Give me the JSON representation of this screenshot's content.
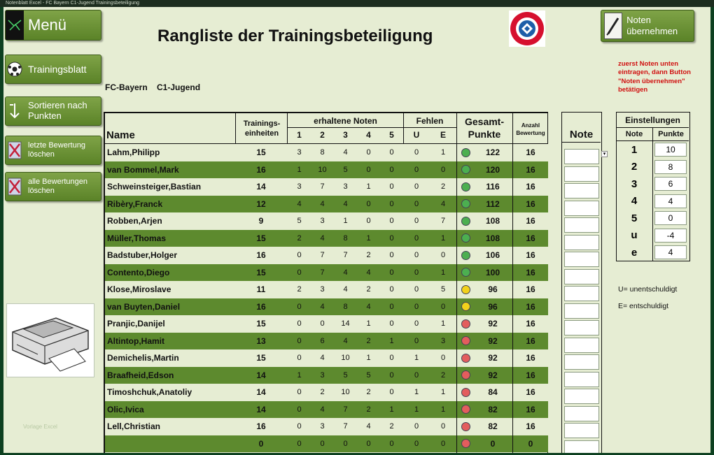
{
  "window": {
    "caption": "Notenblatt Excel - FC Bayern C1-Jugend Trainingsbeteiligung"
  },
  "sidebar": {
    "menu_label": "Menü",
    "buttons": [
      {
        "label": "Trainingsblatt",
        "icon": "soccer-ball-icon"
      },
      {
        "label": "Sortieren nach Punkten",
        "icon": "sort-icon"
      },
      {
        "label": "letzte Bewertung löschen",
        "icon": "delete-x-icon"
      },
      {
        "label": "alle Bewertungen löschen",
        "icon": "delete-x-icon"
      }
    ],
    "printer_icon": "printer-icon",
    "watermark": "Vorlage Excel"
  },
  "header": {
    "title": "Rangliste der Trainingsbeteiligung",
    "club_team": "FC-Bayern    C1-Jugend",
    "logo_text": "FC BAYERN MÜNCHEN",
    "noten_button": "Noten übernehmen",
    "hint": "zuerst Noten unten eintragen, dann Button \"Noten übernehmen\" betätigen"
  },
  "table": {
    "headers": {
      "name": "Name",
      "trainings": "Trainings-einheiten",
      "grades_group": "erhaltene Noten",
      "grades": [
        "1",
        "2",
        "3",
        "4",
        "5"
      ],
      "absent_group": "Fehlen",
      "absent": [
        "U",
        "E"
      ],
      "total": "Gesamt-Punkte",
      "count": "Anzahl Bewertung"
    },
    "status_colors": {
      "green": "#4caf50",
      "yellow": "#f2d21b",
      "red": "#e35d5d"
    },
    "rows": [
      {
        "name": "Lahm,Philipp",
        "te": "15",
        "n1": "3",
        "n2": "8",
        "n3": "4",
        "n4": "0",
        "n5": "0",
        "u": "0",
        "e": "1",
        "status": "green",
        "points": "122",
        "count": "16"
      },
      {
        "name": "van Bommel,Mark",
        "te": "16",
        "n1": "1",
        "n2": "10",
        "n3": "5",
        "n4": "0",
        "n5": "0",
        "u": "0",
        "e": "0",
        "status": "green",
        "points": "120",
        "count": "16"
      },
      {
        "name": "Schweinsteiger,Bastian",
        "te": "14",
        "n1": "3",
        "n2": "7",
        "n3": "3",
        "n4": "1",
        "n5": "0",
        "u": "0",
        "e": "2",
        "status": "green",
        "points": "116",
        "count": "16"
      },
      {
        "name": "Ribèry,Franck",
        "te": "12",
        "n1": "4",
        "n2": "4",
        "n3": "4",
        "n4": "0",
        "n5": "0",
        "u": "0",
        "e": "4",
        "status": "green",
        "points": "112",
        "count": "16"
      },
      {
        "name": "Robben,Arjen",
        "te": "9",
        "n1": "5",
        "n2": "3",
        "n3": "1",
        "n4": "0",
        "n5": "0",
        "u": "0",
        "e": "7",
        "status": "green",
        "points": "108",
        "count": "16"
      },
      {
        "name": "Müller,Thomas",
        "te": "15",
        "n1": "2",
        "n2": "4",
        "n3": "8",
        "n4": "1",
        "n5": "0",
        "u": "0",
        "e": "1",
        "status": "green",
        "points": "108",
        "count": "16"
      },
      {
        "name": "Badstuber,Holger",
        "te": "16",
        "n1": "0",
        "n2": "7",
        "n3": "7",
        "n4": "2",
        "n5": "0",
        "u": "0",
        "e": "0",
        "status": "green",
        "points": "106",
        "count": "16"
      },
      {
        "name": "Contento,Diego",
        "te": "15",
        "n1": "0",
        "n2": "7",
        "n3": "4",
        "n4": "4",
        "n5": "0",
        "u": "0",
        "e": "1",
        "status": "green",
        "points": "100",
        "count": "16"
      },
      {
        "name": "Klose,Miroslave",
        "te": "11",
        "n1": "2",
        "n2": "3",
        "n3": "4",
        "n4": "2",
        "n5": "0",
        "u": "0",
        "e": "5",
        "status": "yellow",
        "points": "96",
        "count": "16"
      },
      {
        "name": "van Buyten,Daniel",
        "te": "16",
        "n1": "0",
        "n2": "4",
        "n3": "8",
        "n4": "4",
        "n5": "0",
        "u": "0",
        "e": "0",
        "status": "yellow",
        "points": "96",
        "count": "16"
      },
      {
        "name": "Pranjic,Danijel",
        "te": "15",
        "n1": "0",
        "n2": "0",
        "n3": "14",
        "n4": "1",
        "n5": "0",
        "u": "0",
        "e": "1",
        "status": "red",
        "points": "92",
        "count": "16"
      },
      {
        "name": "Altintop,Hamit",
        "te": "13",
        "n1": "0",
        "n2": "6",
        "n3": "4",
        "n4": "2",
        "n5": "1",
        "u": "0",
        "e": "3",
        "status": "red",
        "points": "92",
        "count": "16"
      },
      {
        "name": "Demichelis,Martin",
        "te": "15",
        "n1": "0",
        "n2": "4",
        "n3": "10",
        "n4": "1",
        "n5": "0",
        "u": "1",
        "e": "0",
        "status": "red",
        "points": "92",
        "count": "16"
      },
      {
        "name": "Braafheid,Edson",
        "te": "14",
        "n1": "1",
        "n2": "3",
        "n3": "5",
        "n4": "5",
        "n5": "0",
        "u": "0",
        "e": "2",
        "status": "red",
        "points": "92",
        "count": "16"
      },
      {
        "name": "Timoshchuk,Anatoliy",
        "te": "14",
        "n1": "0",
        "n2": "2",
        "n3": "10",
        "n4": "2",
        "n5": "0",
        "u": "1",
        "e": "1",
        "status": "red",
        "points": "84",
        "count": "16"
      },
      {
        "name": "Olic,Ivica",
        "te": "14",
        "n1": "0",
        "n2": "4",
        "n3": "7",
        "n4": "2",
        "n5": "1",
        "u": "1",
        "e": "1",
        "status": "red",
        "points": "82",
        "count": "16"
      },
      {
        "name": "Lell,Christian",
        "te": "16",
        "n1": "0",
        "n2": "3",
        "n3": "7",
        "n4": "4",
        "n5": "2",
        "u": "0",
        "e": "0",
        "status": "red",
        "points": "82",
        "count": "16"
      },
      {
        "name": "",
        "te": "0",
        "n1": "0",
        "n2": "0",
        "n3": "0",
        "n4": "0",
        "n5": "0",
        "u": "0",
        "e": "0",
        "status": "red",
        "points": "0",
        "count": "0"
      }
    ]
  },
  "note_column": {
    "header": "Note"
  },
  "settings": {
    "title": "Einstellungen",
    "col_note": "Note",
    "col_points": "Punkte",
    "rows": [
      {
        "note": "1",
        "points": "10"
      },
      {
        "note": "2",
        "points": "8"
      },
      {
        "note": "3",
        "points": "6"
      },
      {
        "note": "4",
        "points": "4"
      },
      {
        "note": "5",
        "points": "0"
      },
      {
        "note": "u",
        "points": "-4"
      },
      {
        "note": "e",
        "points": "4"
      }
    ]
  },
  "legend": {
    "u": "U= unentschuldigt",
    "e": "E= entschuldigt"
  }
}
